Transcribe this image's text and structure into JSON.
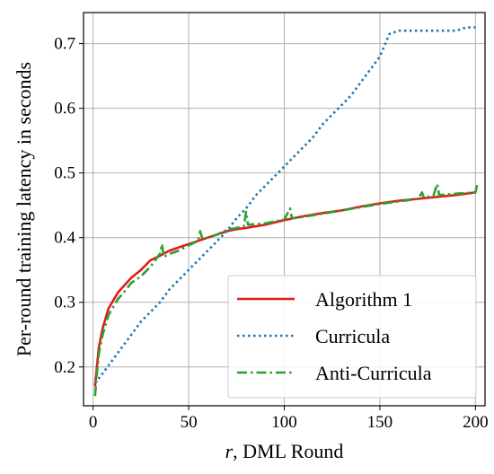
{
  "chart_data": {
    "type": "line",
    "xlabel_italic": "r",
    "xlabel_rest": ", DML Round",
    "ylabel": "Per-round training latency in seconds",
    "xlim": [
      -5,
      205
    ],
    "ylim": [
      0.14,
      0.748
    ],
    "xticks": [
      0,
      50,
      100,
      150,
      200
    ],
    "yticks": [
      0.2,
      0.3,
      0.4,
      0.5,
      0.6,
      0.7
    ],
    "xtick_labels": [
      "0",
      "50",
      "100",
      "150",
      "200"
    ],
    "ytick_labels": [
      "0.2",
      "0.3",
      "0.4",
      "0.5",
      "0.6",
      "0.7"
    ],
    "grid": true,
    "legend_position": "lower-right",
    "series": [
      {
        "name": "Algorithm 1",
        "color": "#e41a1c",
        "style": "solid",
        "points": [
          [
            1,
            0.17
          ],
          [
            2,
            0.2
          ],
          [
            3,
            0.23
          ],
          [
            5,
            0.26
          ],
          [
            8,
            0.29
          ],
          [
            10,
            0.3
          ],
          [
            13,
            0.315
          ],
          [
            16,
            0.325
          ],
          [
            20,
            0.338
          ],
          [
            25,
            0.35
          ],
          [
            30,
            0.365
          ],
          [
            35,
            0.372
          ],
          [
            40,
            0.38
          ],
          [
            45,
            0.385
          ],
          [
            50,
            0.39
          ],
          [
            55,
            0.395
          ],
          [
            60,
            0.4
          ],
          [
            65,
            0.405
          ],
          [
            70,
            0.41
          ],
          [
            75,
            0.413
          ],
          [
            80,
            0.415
          ],
          [
            90,
            0.42
          ],
          [
            100,
            0.427
          ],
          [
            110,
            0.433
          ],
          [
            120,
            0.438
          ],
          [
            130,
            0.442
          ],
          [
            140,
            0.448
          ],
          [
            150,
            0.453
          ],
          [
            160,
            0.457
          ],
          [
            170,
            0.46
          ],
          [
            180,
            0.463
          ],
          [
            190,
            0.466
          ],
          [
            200,
            0.47
          ]
        ]
      },
      {
        "name": "Curricula",
        "color": "#1f77b4",
        "style": "dotted",
        "points": [
          [
            1,
            0.175
          ],
          [
            5,
            0.19
          ],
          [
            10,
            0.21
          ],
          [
            15,
            0.23
          ],
          [
            20,
            0.25
          ],
          [
            25,
            0.27
          ],
          [
            30,
            0.285
          ],
          [
            35,
            0.3
          ],
          [
            40,
            0.32
          ],
          [
            45,
            0.335
          ],
          [
            50,
            0.35
          ],
          [
            55,
            0.365
          ],
          [
            60,
            0.38
          ],
          [
            65,
            0.395
          ],
          [
            70,
            0.41
          ],
          [
            75,
            0.43
          ],
          [
            80,
            0.445
          ],
          [
            85,
            0.465
          ],
          [
            90,
            0.48
          ],
          [
            95,
            0.495
          ],
          [
            100,
            0.51
          ],
          [
            105,
            0.525
          ],
          [
            110,
            0.54
          ],
          [
            115,
            0.555
          ],
          [
            120,
            0.575
          ],
          [
            125,
            0.59
          ],
          [
            130,
            0.605
          ],
          [
            135,
            0.62
          ],
          [
            140,
            0.64
          ],
          [
            145,
            0.66
          ],
          [
            150,
            0.68
          ],
          [
            155,
            0.715
          ],
          [
            160,
            0.72
          ],
          [
            170,
            0.72
          ],
          [
            180,
            0.72
          ],
          [
            190,
            0.72
          ],
          [
            195,
            0.725
          ],
          [
            200,
            0.725
          ]
        ]
      },
      {
        "name": "Anti-Curricula",
        "color": "#2ca02c",
        "style": "dashdot",
        "points": [
          [
            1,
            0.155
          ],
          [
            2,
            0.19
          ],
          [
            3,
            0.22
          ],
          [
            5,
            0.25
          ],
          [
            8,
            0.28
          ],
          [
            10,
            0.29
          ],
          [
            13,
            0.305
          ],
          [
            16,
            0.315
          ],
          [
            20,
            0.33
          ],
          [
            25,
            0.34
          ],
          [
            30,
            0.355
          ],
          [
            35,
            0.375
          ],
          [
            36,
            0.39
          ],
          [
            37,
            0.37
          ],
          [
            40,
            0.375
          ],
          [
            45,
            0.38
          ],
          [
            50,
            0.388
          ],
          [
            55,
            0.395
          ],
          [
            56,
            0.41
          ],
          [
            57,
            0.4
          ],
          [
            60,
            0.4
          ],
          [
            65,
            0.405
          ],
          [
            70,
            0.412
          ],
          [
            75,
            0.415
          ],
          [
            79,
            0.418
          ],
          [
            80,
            0.44
          ],
          [
            81,
            0.42
          ],
          [
            90,
            0.422
          ],
          [
            100,
            0.428
          ],
          [
            103,
            0.445
          ],
          [
            104,
            0.43
          ],
          [
            110,
            0.432
          ],
          [
            120,
            0.437
          ],
          [
            130,
            0.442
          ],
          [
            140,
            0.447
          ],
          [
            150,
            0.452
          ],
          [
            160,
            0.456
          ],
          [
            170,
            0.46
          ],
          [
            172,
            0.47
          ],
          [
            173,
            0.462
          ],
          [
            178,
            0.465
          ],
          [
            180,
            0.483
          ],
          [
            181,
            0.466
          ],
          [
            190,
            0.468
          ],
          [
            200,
            0.47
          ],
          [
            201,
            0.483
          ]
        ]
      }
    ]
  }
}
